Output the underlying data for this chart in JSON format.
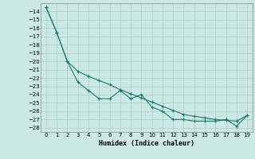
{
  "xlabel": "Humidex (Indice chaleur)",
  "background_color": "#cce8e4",
  "grid_color": "#b0ccc8",
  "line_color": "#1a7a6e",
  "x": [
    0,
    1,
    2,
    3,
    4,
    5,
    6,
    7,
    8,
    9,
    10,
    11,
    12,
    13,
    14,
    15,
    16,
    17,
    18,
    19
  ],
  "line1": [
    -13.5,
    -16.5,
    -20.0,
    -22.5,
    -23.5,
    -24.5,
    -24.5,
    -23.5,
    -24.5,
    -24.0,
    -25.5,
    -26.0,
    -27.0,
    -27.0,
    -27.2,
    -27.2,
    -27.2,
    -27.0,
    -27.8,
    -26.5
  ],
  "line2": [
    -13.5,
    -16.5,
    -20.0,
    -21.2,
    -21.8,
    -22.3,
    -22.8,
    -23.4,
    -23.9,
    -24.4,
    -24.9,
    -25.4,
    -25.9,
    -26.4,
    -26.6,
    -26.8,
    -27.0,
    -27.1,
    -27.2,
    -26.5
  ],
  "ylim": [
    -28.5,
    -13.0
  ],
  "xlim": [
    -0.5,
    19.5
  ],
  "yticks": [
    -14,
    -15,
    -16,
    -17,
    -18,
    -19,
    -20,
    -21,
    -22,
    -23,
    -24,
    -25,
    -26,
    -27,
    -28
  ],
  "xticks": [
    0,
    1,
    2,
    3,
    4,
    5,
    6,
    7,
    8,
    9,
    10,
    11,
    12,
    13,
    14,
    15,
    16,
    17,
    18,
    19
  ]
}
